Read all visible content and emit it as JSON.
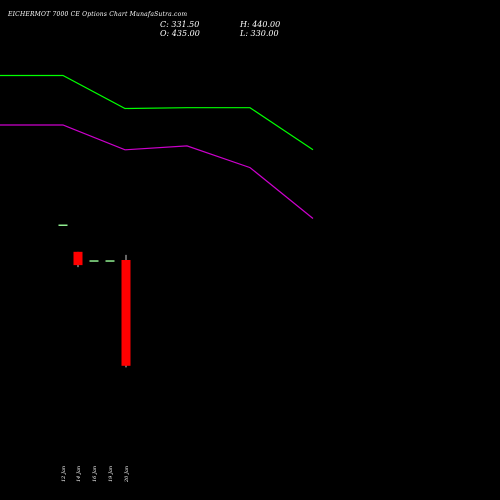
{
  "header": {
    "title": "EICHERMOT 7000  CE Options  Chart MunafaSutra.com",
    "close_text": "C: 331.50",
    "open_text": "O: 435.00",
    "high_text": "H: 440.00",
    "low_text": "L: 330.00"
  },
  "colors": {
    "background": "#000000",
    "upper_line": "#00ff00",
    "lower_line": "#cc00cc",
    "bearish_candle": "#ff0000",
    "bullish_candle": "#00ff00",
    "doji": "#90ee90",
    "text": "#ffffff"
  },
  "chart_data": {
    "type": "candlestick",
    "title": "EICHERMOT 7000  CE Options  Chart MunafaSutra.com",
    "xlabel": "",
    "ylabel": "",
    "grid": false,
    "legend": "none",
    "categories": [
      "12 Jan",
      "14 Jan",
      "16 Jan",
      "19 Jan",
      "20 Jan"
    ],
    "ylim": [
      300,
      480
    ],
    "ohlc": [
      {
        "date": "12 Jan",
        "open": 469,
        "high": 469,
        "low": 469,
        "close": 469
      },
      {
        "date": "14 Jan",
        "open": 443,
        "high": 443,
        "low": 428,
        "close": 430
      },
      {
        "date": "16 Jan",
        "open": 434,
        "high": 434,
        "low": 434,
        "close": 434
      },
      {
        "date": "19 Jan",
        "open": 434,
        "high": 434,
        "low": 434,
        "close": 434
      },
      {
        "date": "20 Jan",
        "open": 435,
        "high": 440,
        "low": 330,
        "close": 331.5
      }
    ],
    "overlay_series": [
      {
        "color": "#00ff00",
        "points": [
          {
            "x": "11 Jan",
            "y": 78
          },
          {
            "x": "12 Jan",
            "y": 78
          },
          {
            "x": "14 Jan",
            "y": 66
          },
          {
            "x": "16 Jan",
            "y": 66.3
          },
          {
            "x": "19 Jan",
            "y": 66.3
          },
          {
            "x": "20 Jan",
            "y": 51
          }
        ],
        "ylim": [
          0,
          100
        ]
      },
      {
        "color": "#cc00cc",
        "points": [
          {
            "x": "11 Jan",
            "y": 60
          },
          {
            "x": "12 Jan",
            "y": 60
          },
          {
            "x": "14 Jan",
            "y": 51
          },
          {
            "x": "16 Jan",
            "y": 52.4
          },
          {
            "x": "19 Jan",
            "y": 44.5
          },
          {
            "x": "20 Jan",
            "y": 26
          }
        ],
        "ylim": [
          0,
          100
        ]
      }
    ]
  }
}
